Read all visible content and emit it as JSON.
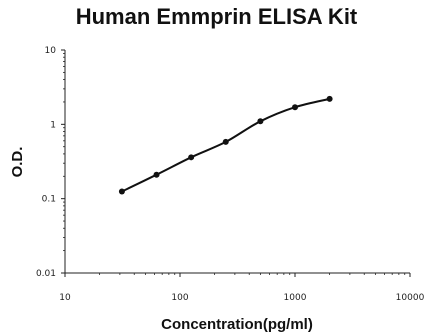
{
  "chart_data": {
    "type": "scatter",
    "title": "Human Emmprin ELISA Kit",
    "xlabel": "Concentration(pg/ml)",
    "ylabel": "O.D.",
    "xscale": "log",
    "yscale": "log",
    "xlim": [
      10,
      10000
    ],
    "ylim": [
      0.01,
      10
    ],
    "xticks": [
      "10",
      "100",
      "1000",
      "10000"
    ],
    "yticks": [
      "0.01",
      "0.1",
      "1",
      "10"
    ],
    "grid": false,
    "legend": "none",
    "series": [
      {
        "x": [
          31.25,
          62.5,
          125,
          250,
          500,
          1000,
          2000
        ],
        "y": [
          0.125,
          0.21,
          0.36,
          0.58,
          1.1,
          1.7,
          2.2
        ],
        "fit_line": true
      }
    ]
  }
}
